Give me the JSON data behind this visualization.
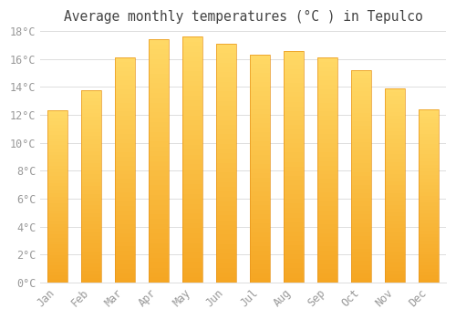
{
  "title": "Average monthly temperatures (°C ) in Tepulco",
  "months": [
    "Jan",
    "Feb",
    "Mar",
    "Apr",
    "May",
    "Jun",
    "Jul",
    "Aug",
    "Sep",
    "Oct",
    "Nov",
    "Dec"
  ],
  "values": [
    12.3,
    13.8,
    16.1,
    17.4,
    17.6,
    17.1,
    16.3,
    16.6,
    16.1,
    15.2,
    13.9,
    12.4
  ],
  "bar_color_bottom": "#F5A623",
  "bar_color_top": "#FFD966",
  "ylim": [
    0,
    18
  ],
  "ytick_step": 2,
  "background_color": "#FFFFFF",
  "grid_color": "#DDDDDD",
  "title_fontsize": 10.5,
  "tick_fontsize": 8.5,
  "tick_color": "#999999",
  "title_color": "#444444",
  "font_family": "monospace",
  "bar_width": 0.6,
  "figsize": [
    5.0,
    3.5
  ],
  "dpi": 100
}
